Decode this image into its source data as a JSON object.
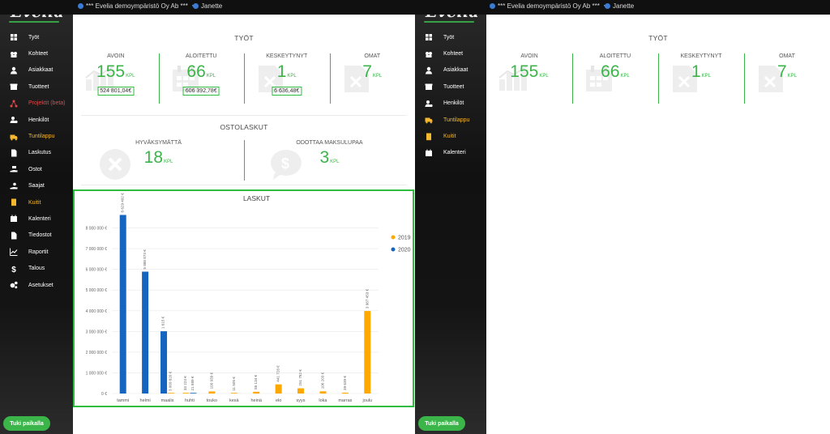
{
  "left": {
    "logo": "Evelia",
    "company": "*** Evelia demoympäristö Oy Ab ***",
    "user": "Janette",
    "nav": [
      {
        "label": "Työt",
        "icon": "grid-icon",
        "state": "normal"
      },
      {
        "label": "Kohteet",
        "icon": "buildings-icon",
        "state": "normal"
      },
      {
        "label": "Asiakkaat",
        "icon": "person-icon",
        "state": "normal"
      },
      {
        "label": "Tuotteet",
        "icon": "box-icon",
        "state": "normal"
      },
      {
        "label": "Projektit (beta)",
        "icon": "network-icon",
        "state": "red"
      },
      {
        "label": "Henkilöt",
        "icon": "person-cog-icon",
        "state": "normal"
      },
      {
        "label": "Tuntilappu",
        "icon": "truck-icon",
        "state": "orange"
      },
      {
        "label": "Laskutus",
        "icon": "invoice-icon",
        "state": "normal"
      },
      {
        "label": "Ostot",
        "icon": "hand-money-icon",
        "state": "normal"
      },
      {
        "label": "Saajat",
        "icon": "hand-coin-icon",
        "state": "normal"
      },
      {
        "label": "Kuitit",
        "icon": "receipt-icon",
        "state": "orange"
      },
      {
        "label": "Kalenteri",
        "icon": "calendar-icon",
        "state": "normal"
      },
      {
        "label": "Tiedostot",
        "icon": "file-icon",
        "state": "normal"
      },
      {
        "label": "Raportit",
        "icon": "line-chart-icon",
        "state": "normal"
      },
      {
        "label": "Talous",
        "icon": "dollar-icon",
        "state": "normal"
      },
      {
        "label": "Asetukset",
        "icon": "cogs-icon",
        "state": "normal"
      }
    ],
    "support_label": "Tuki paikalla",
    "tyot": {
      "title": "TYÖT",
      "kpis": [
        {
          "label": "AVOIN",
          "value": "155",
          "unit": "KPL",
          "amount": "524 801,04€",
          "icon": "chart-icon"
        },
        {
          "label": "ALOITETTU",
          "value": "66",
          "unit": "KPL",
          "amount": "606 392,78€",
          "icon": "calendar-icon"
        },
        {
          "label": "KESKEYTYNYT",
          "value": "1",
          "unit": "KPL",
          "amount": "6 636,48€",
          "icon": "file-x-icon"
        },
        {
          "label": "OMAT",
          "value": "7",
          "unit": "KPL",
          "amount": "",
          "icon": "file-x-icon"
        }
      ]
    },
    "ostolaskut": {
      "title": "OSTOLASKUT",
      "items": [
        {
          "label": "HYVÄKSYMÄTTÄ",
          "value": "18",
          "unit": "KPL",
          "icon": "circle-x-icon"
        },
        {
          "label": "ODOTTAA MAKSULUPAA",
          "value": "3",
          "unit": "KPL",
          "icon": "speech-dollar-icon"
        }
      ]
    }
  },
  "right": {
    "logo": "Evelia",
    "company": "*** Evelia demoympäristö Oy Ab ***",
    "user": "Janette",
    "nav": [
      {
        "label": "Työt",
        "icon": "grid-icon",
        "state": "normal"
      },
      {
        "label": "Kohteet",
        "icon": "buildings-icon",
        "state": "normal"
      },
      {
        "label": "Asiakkaat",
        "icon": "person-icon",
        "state": "normal"
      },
      {
        "label": "Tuotteet",
        "icon": "box-icon",
        "state": "normal"
      },
      {
        "label": "Henkilöt",
        "icon": "person-cog-icon",
        "state": "normal"
      },
      {
        "label": "Tuntilappu",
        "icon": "truck-icon",
        "state": "orange"
      },
      {
        "label": "Kuitit",
        "icon": "receipt-icon",
        "state": "orange"
      },
      {
        "label": "Kalenteri",
        "icon": "calendar-icon",
        "state": "normal"
      }
    ],
    "support_label": "Tuki paikalla",
    "tyot": {
      "title": "TYÖT",
      "kpis": [
        {
          "label": "AVOIN",
          "value": "155",
          "unit": "KPL",
          "icon": "chart-icon"
        },
        {
          "label": "ALOITETTU",
          "value": "66",
          "unit": "KPL",
          "icon": "calendar-icon"
        },
        {
          "label": "KESKEYTYNYT",
          "value": "1",
          "unit": "KPL",
          "icon": "file-x-icon"
        },
        {
          "label": "OMAT",
          "value": "7",
          "unit": "KPL",
          "icon": "file-x-icon"
        }
      ]
    }
  },
  "colors": {
    "accent": "#3bb54a",
    "highlight_border": "#2ebd3f",
    "series_2019": "#ffa800",
    "series_2020": "#1565c0",
    "nav_orange": "#f5b82e",
    "nav_red": "#e24a4a"
  },
  "chart_data": {
    "type": "bar",
    "title": "LASKUT",
    "categories": [
      "tammi",
      "helmi",
      "maalis",
      "huhti",
      "touko",
      "kesä",
      "heinä",
      "elo",
      "syys",
      "loka",
      "marras",
      "joulu"
    ],
    "series": [
      {
        "name": "2019",
        "color": "#ffa800",
        "values": [
          null,
          null,
          null,
          33223,
          100939,
          11505,
          85134,
          441728,
          251782,
          106203,
          39639,
          3987453
        ]
      },
      {
        "name": "2020",
        "color": "#1565c0",
        "values": [
          8629492,
          5888874,
          3009820,
          null,
          null,
          null,
          null,
          null,
          null,
          null,
          null,
          null
        ]
      }
    ],
    "extra_bars": [
      {
        "category": "maalis",
        "series": "2019",
        "value": 1615
      },
      {
        "category": "huhti",
        "series": "2020",
        "value": 21589
      }
    ],
    "labels": {
      "tammi": [
        "8 629 492 €"
      ],
      "helmi": [
        "5 888 874 €"
      ],
      "maalis": [
        "1 615 €",
        "3 009 820 €"
      ],
      "huhti": [
        "33 223 €",
        "21 589 €"
      ],
      "touko": [
        "100 939 €"
      ],
      "kesä": [
        "11 505 €"
      ],
      "heinä": [
        "85 134 €"
      ],
      "elo": [
        "441 728 €"
      ],
      "syys": [
        "251 782 €"
      ],
      "loka": [
        "106 203 €"
      ],
      "marras": [
        "39 639 €"
      ],
      "joulu": [
        "3 987 453 €"
      ]
    },
    "yticks": [
      "0 €",
      "1 000 000 €",
      "2 000 000 €",
      "3 000 000 €",
      "4 000 000 €",
      "5 000 000 €",
      "6 000 000 €",
      "7 000 000 €",
      "8 000 000 €"
    ],
    "ylim": [
      0,
      9000000
    ],
    "legend": "right",
    "grid": true
  }
}
